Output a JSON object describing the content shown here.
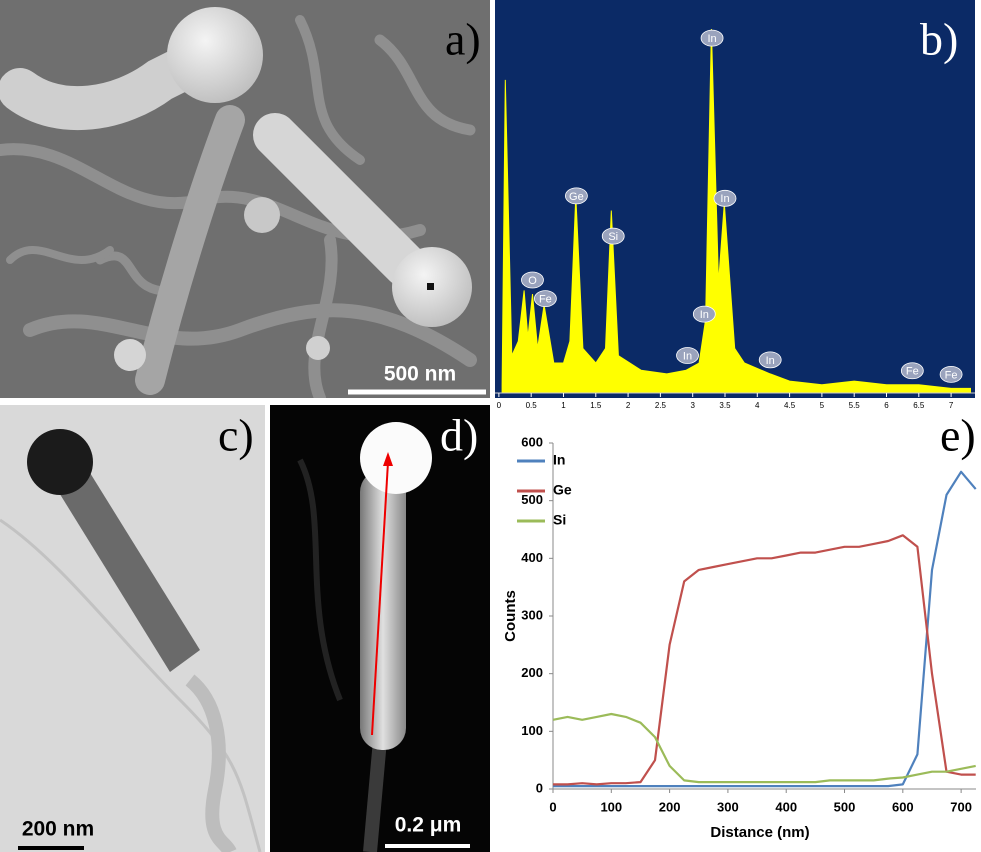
{
  "panels": [
    {
      "label": "a)",
      "scale_bar": "500 nm"
    },
    {
      "label": "b)"
    },
    {
      "label": "c)",
      "scale_bar": "200 nm"
    },
    {
      "label": "d)",
      "scale_bar": "0.2 μm"
    },
    {
      "label": "e)"
    }
  ],
  "chart_data": [
    {
      "type": "area",
      "color": "#ffff00",
      "background": "#0b2a66",
      "x": [
        0.05,
        0.1,
        0.2,
        0.3,
        0.39,
        0.45,
        0.52,
        0.6,
        0.7,
        0.85,
        1.0,
        1.1,
        1.19,
        1.3,
        1.5,
        1.65,
        1.74,
        1.85,
        2.2,
        2.6,
        2.9,
        3.1,
        3.2,
        3.29,
        3.4,
        3.49,
        3.65,
        3.8,
        4.2,
        4.5,
        5.0,
        5.5,
        6.0,
        6.5,
        7.0,
        7.3
      ],
      "values": [
        2,
        86,
        10,
        14,
        28,
        15,
        27,
        12,
        24,
        8,
        8,
        14,
        54,
        12,
        8,
        12,
        50,
        10,
        6,
        5,
        6,
        8,
        20,
        100,
        30,
        52,
        12,
        8,
        5,
        3,
        2,
        3,
        2,
        2,
        1,
        1
      ],
      "xlim": [
        -0.06,
        7.37
      ],
      "ylim": [
        0,
        108
      ],
      "xticks": [
        0,
        0.5,
        1,
        1.5,
        2,
        2.5,
        3,
        3.5,
        4,
        4.5,
        5,
        5.5,
        6,
        6.5,
        7
      ],
      "peak_labels": [
        {
          "label": "O",
          "x": 0.52
        },
        {
          "label": "Fe",
          "x": 0.72
        },
        {
          "label": "Ge",
          "x": 1.2
        },
        {
          "label": "Si",
          "x": 1.77
        },
        {
          "label": "In",
          "x": 3.3
        },
        {
          "label": "In",
          "x": 3.5
        },
        {
          "label": "In",
          "x": 2.92
        },
        {
          "label": "In",
          "x": 3.18
        },
        {
          "label": "In",
          "x": 4.2
        },
        {
          "label": "Fe",
          "x": 6.4
        },
        {
          "label": "Fe",
          "x": 7.0
        }
      ]
    },
    {
      "type": "line",
      "xlabel": "Distance (nm)",
      "ylabel": "Counts",
      "legend": "upper left",
      "x": [
        0,
        25,
        50,
        75,
        100,
        125,
        150,
        175,
        200,
        225,
        250,
        275,
        300,
        325,
        350,
        375,
        400,
        425,
        450,
        475,
        500,
        525,
        550,
        575,
        600,
        625,
        650,
        675,
        700,
        725
      ],
      "series": [
        {
          "name": "In",
          "color": "#4f81bd",
          "values": [
            5,
            5,
            5,
            5,
            5,
            5,
            5,
            5,
            5,
            5,
            5,
            5,
            5,
            5,
            5,
            5,
            5,
            5,
            5,
            5,
            5,
            5,
            5,
            5,
            8,
            60,
            380,
            510,
            550,
            520
          ]
        },
        {
          "name": "Ge",
          "color": "#c0504d",
          "values": [
            8,
            8,
            10,
            8,
            10,
            10,
            12,
            50,
            250,
            360,
            380,
            385,
            390,
            395,
            400,
            400,
            405,
            410,
            410,
            415,
            420,
            420,
            425,
            430,
            440,
            420,
            200,
            30,
            25,
            25
          ]
        },
        {
          "name": "Si",
          "color": "#9bbb59",
          "values": [
            120,
            125,
            120,
            125,
            130,
            125,
            115,
            90,
            40,
            15,
            12,
            12,
            12,
            12,
            12,
            12,
            12,
            12,
            12,
            15,
            15,
            15,
            15,
            18,
            20,
            25,
            30,
            30,
            35,
            40
          ]
        }
      ],
      "xlim": [
        0,
        725
      ],
      "ylim": [
        0,
        600
      ],
      "xticks": [
        0,
        100,
        200,
        300,
        400,
        500,
        600,
        700
      ],
      "yticks": [
        0,
        100,
        200,
        300,
        400,
        500,
        600
      ]
    }
  ]
}
